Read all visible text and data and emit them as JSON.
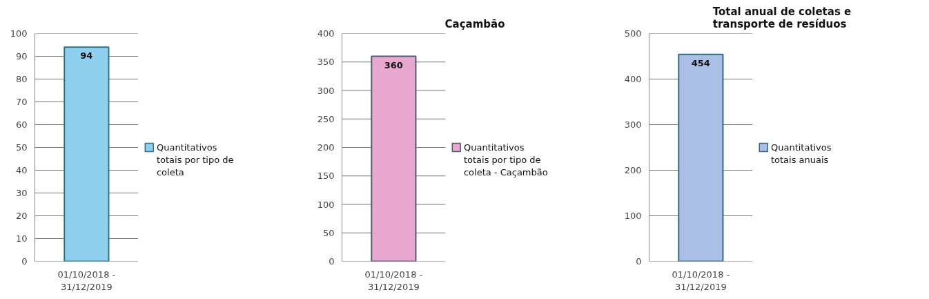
{
  "chart_data": [
    {
      "type": "bar",
      "categories": [
        "01/10/2018 - 31/12/2019"
      ],
      "series": [
        {
          "name": "Quantitativos totais por tipo de coleta",
          "color": "#8fd0ee",
          "values": [
            94
          ]
        }
      ],
      "ylim": [
        0,
        100
      ],
      "yticks": [
        0,
        10,
        20,
        30,
        40,
        50,
        60,
        70,
        80,
        90,
        100
      ],
      "grid": "y",
      "legend": "right",
      "data_labels": true
    },
    {
      "type": "bar",
      "title": "Caçambão",
      "categories": [
        "01/10/2018 - 31/12/2019"
      ],
      "series": [
        {
          "name": "Quantitativos totais por tipo de coleta - Caçambão",
          "color": "#e8a8d0",
          "values": [
            360
          ]
        }
      ],
      "ylim": [
        0,
        400
      ],
      "yticks": [
        0,
        50,
        100,
        150,
        200,
        250,
        300,
        350,
        400
      ],
      "grid": "y",
      "legend": "right",
      "data_labels": true
    },
    {
      "type": "bar",
      "title": "Total anual de coletas e transporte de resíduos",
      "categories": [
        "01/10/2018 - 31/12/2019"
      ],
      "series": [
        {
          "name": "Quantitativos totais anuais",
          "color": "#a9bfe6",
          "values": [
            454
          ]
        }
      ],
      "ylim": [
        0,
        500
      ],
      "yticks": [
        0,
        100,
        200,
        300,
        400,
        500
      ],
      "grid": "y",
      "legend": "right",
      "data_labels": true
    }
  ]
}
